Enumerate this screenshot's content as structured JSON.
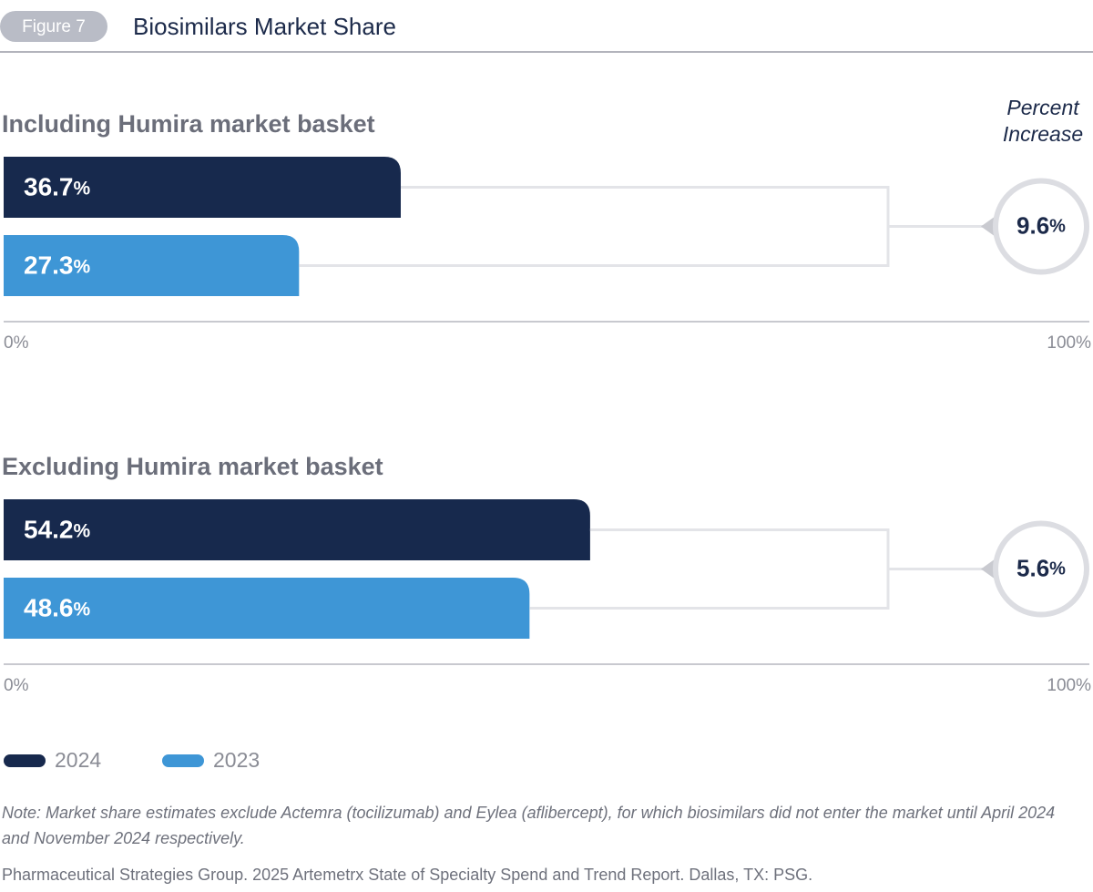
{
  "figure_label": "Figure 7",
  "title": "Biosimilars Market Share",
  "annotation_header": [
    "Percent",
    "Increase"
  ],
  "legend": [
    {
      "name": "2024",
      "color": "#17294d"
    },
    {
      "name": "2023",
      "color": "#3e96d6"
    }
  ],
  "chart_data": [
    {
      "type": "bar",
      "orientation": "horizontal",
      "title": "Including Humira market basket",
      "series": [
        {
          "values": [
            36.7
          ],
          "value_labels": [
            "36.7%"
          ]
        },
        {
          "values": [
            27.3
          ],
          "value_labels": [
            "27.3%"
          ]
        }
      ],
      "xlim": [
        0,
        100
      ],
      "xticks": [
        {
          "value": 0,
          "label": "0%"
        },
        {
          "value": 100,
          "label": "100%"
        }
      ],
      "percent_increase": 9.6,
      "percent_increase_label": "9.6%"
    },
    {
      "type": "bar",
      "orientation": "horizontal",
      "title": "Excluding Humira market basket",
      "series": [
        {
          "values": [
            54.2
          ],
          "value_labels": [
            "54.2%"
          ]
        },
        {
          "values": [
            48.6
          ],
          "value_labels": [
            "48.6%"
          ]
        }
      ],
      "xlim": [
        0,
        100
      ],
      "xticks": [
        {
          "value": 0,
          "label": "0%"
        },
        {
          "value": 100,
          "label": "100%"
        }
      ],
      "percent_increase": 5.6,
      "percent_increase_label": "5.6%"
    }
  ],
  "note": "Note: Market share estimates exclude Actemra (tocilizumab) and Eylea (aflibercept), for which biosimilars did not enter the market until April 2024 and November 2024 respectively.",
  "source": "Pharmaceutical Strategies Group. 2025 Artemetrx State of Specialty Spend and Trend Report. Dallas, TX: PSG."
}
